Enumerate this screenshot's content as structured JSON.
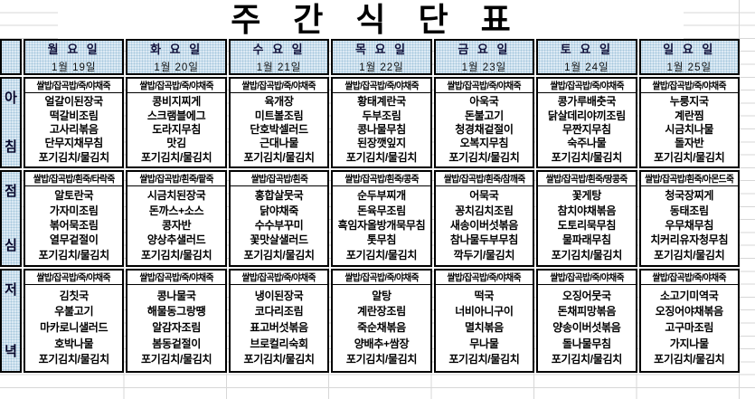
{
  "title": "주 간 식 단 표",
  "days": [
    {
      "name": "월 요 일",
      "date": "1월 19일"
    },
    {
      "name": "화 요 일",
      "date": "1월 20일"
    },
    {
      "name": "수 요 일",
      "date": "1월 21일"
    },
    {
      "name": "목 요 일",
      "date": "1월 22일"
    },
    {
      "name": "금 요 일",
      "date": "1월 23일"
    },
    {
      "name": "토 요 일",
      "date": "1월 24일"
    },
    {
      "name": "일 요 일",
      "date": "1월 25일"
    }
  ],
  "meals": [
    {
      "label": "아침",
      "cells": [
        {
          "header": "쌀밥/잡곡밥/죽/야채죽",
          "items": [
            "얼갈이된장국",
            "떡갈비조림",
            "고사리볶음",
            "단무지채무침",
            "포기김치/물김치"
          ]
        },
        {
          "header": "쌀밥/잡곡밥/죽/야채죽",
          "items": [
            "콩비지찌게",
            "스크램블에그",
            "도라지무침",
            "맛김",
            "포기김치/물김치"
          ]
        },
        {
          "header": "쌀밥/잡곡밥/죽/야채죽",
          "items": [
            "육개장",
            "미트볼조림",
            "단호박셀러드",
            "근대나물",
            "포기김치/물김치"
          ]
        },
        {
          "header": "쌀밥/잡곡밥/죽/야채죽",
          "items": [
            "황태계란국",
            "두부조림",
            "콩나물무침",
            "된장깻잎지",
            "포기김치/물김치"
          ]
        },
        {
          "header": "쌀밥/잡곡밥/죽/야채죽",
          "items": [
            "아욱국",
            "돈불고기",
            "청경채겉절이",
            "오복지무침",
            "포기김치/물김치"
          ]
        },
        {
          "header": "쌀밥/잡곡밥/죽/야채죽",
          "items": [
            "콩가루배춧국",
            "닭살데리야끼조림",
            "무짠지무침",
            "숙주나물",
            "포기김치/물김치"
          ]
        },
        {
          "header": "쌀밥/잡곡밥/죽/야채죽",
          "items": [
            "누룽지국",
            "계란찜",
            "시금치나물",
            "돌자반",
            "포기김치/물김치"
          ]
        }
      ]
    },
    {
      "label": "점심",
      "cells": [
        {
          "header": "쌀밥/잡곡밥/흰죽/타락죽",
          "items": [
            "알토란국",
            "가자미조림",
            "볶어묵조림",
            "열무겉절이",
            "포기김치/물김치"
          ]
        },
        {
          "header": "쌀밥/잡곡밥/흰죽/팥죽",
          "items": [
            "시금치된장국",
            "돈까스+소스",
            "콩자반",
            "양상추샐러드",
            "포기김치/물김치"
          ]
        },
        {
          "header": "쌀밥/잡곡밥/흰죽",
          "items": [
            "홍합살뭇국",
            "닭야채죽",
            "수수부꾸미",
            "꽃맛살샐러드",
            "포기김치/물김치"
          ]
        },
        {
          "header": "쌀밥/잡곡밥/흰죽/콩죽",
          "items": [
            "순두부찌개",
            "돈육무조림",
            "흑임자올방개묵무침",
            "톳무침",
            "포기김치/물김치"
          ]
        },
        {
          "header": "쌀밥/잡곡밥/흰죽/참깨죽",
          "items": [
            "어묵국",
            "꽁치김치조림",
            "새송이버섯볶음",
            "참나물두부무침",
            "깍두기/물김치"
          ]
        },
        {
          "header": "쌀밥/잡곡밥/흰죽/땅콩죽",
          "items": [
            "꽃게탕",
            "참치야채볶음",
            "도토리묵무침",
            "물파래무침",
            "포기김치/물김치"
          ]
        },
        {
          "header": "쌀밥/잡곡밥/흰죽/아몬드죽",
          "items": [
            "청국장찌게",
            "동태조림",
            "우무채무침",
            "치커리유자청무침",
            "포기김치/물김치"
          ]
        }
      ]
    },
    {
      "label": "저녁",
      "cells": [
        {
          "header": "쌀밥/잡곡밥/죽/야채죽",
          "items": [
            "김칫국",
            "우불고기",
            "마카로니샐러드",
            "호박나물",
            "포기김치/물김치"
          ]
        },
        {
          "header": "쌀밥/잡곡밥/죽/야채죽",
          "items": [
            "콩나물국",
            "해물동그랑땡",
            "알감자조림",
            "봄동겉절이",
            "포기김치/물김치"
          ]
        },
        {
          "header": "쌀밥/잡곡밥/죽/야채죽",
          "items": [
            "냉이된장국",
            "코다리조림",
            "표고버섯볶음",
            "브로컬리숙회",
            "포기김치/물김치"
          ]
        },
        {
          "header": "쌀밥/잡곡밥/죽/야채죽",
          "items": [
            "알탕",
            "계란장조림",
            "죽순채볶음",
            "양배추+쌈장",
            "포기김치/물김치"
          ]
        },
        {
          "header": "쌀밥/잡곡밥/죽/야채죽",
          "items": [
            "떡국",
            "너비아니구이",
            "멸치볶음",
            "무나물",
            "포기김치/물김치"
          ]
        },
        {
          "header": "쌀밥/잡곡밥/죽/야채죽",
          "items": [
            "오징어뭇국",
            "돈채피망볶음",
            "양송이버섯볶음",
            "돌나물무침",
            "포기김치/물김치"
          ]
        },
        {
          "header": "쌀밥/잡곡밥/죽/야채죽",
          "items": [
            "소고기미역국",
            "오징어야채볶음",
            "고구마조림",
            "가지나물",
            "포기김치/물김치"
          ]
        }
      ]
    }
  ],
  "colors": {
    "header_bg": "#dceaf4",
    "header_dot": "#a4c6dc",
    "border": "#000000",
    "gridline": "#d7d7d7",
    "day_text": "#10103a"
  }
}
